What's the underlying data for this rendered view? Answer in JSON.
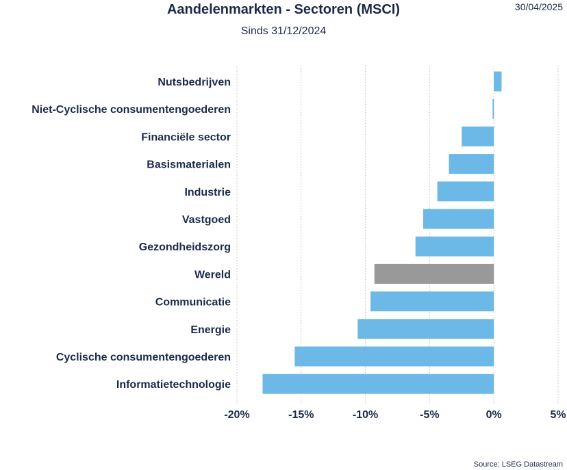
{
  "header": {
    "title": "Aandelenmarkten - Sectoren (MSCI)",
    "subtitle": "Sinds 31/12/2024",
    "date": "30/04/2025"
  },
  "footer": {
    "source": "Source: LSEG Datastream"
  },
  "colors": {
    "sector_bar": "#6cb8e6",
    "world_bar": "#999999",
    "grid": "#bfbfbf",
    "text": "#1b2a4a"
  },
  "chart_data": {
    "type": "bar",
    "orientation": "horizontal",
    "title": "Aandelenmarkten - Sectoren (MSCI)",
    "subtitle": "Sinds 31/12/2024",
    "categories": [
      "Nutsbedrijven",
      "Niet-Cyclische consumentengoederen",
      "Financiële sector",
      "Basismaterialen",
      "Industrie",
      "Vastgoed",
      "Gezondheidszorg",
      "Wereld",
      "Communicatie",
      "Energie",
      "Cyclische consumentengoederen",
      "Informatietechnologie"
    ],
    "values": [
      0.6,
      -0.1,
      -2.5,
      -3.5,
      -4.4,
      -5.5,
      -6.1,
      -9.3,
      -9.6,
      -10.6,
      -15.5,
      -18.0
    ],
    "highlight": "Wereld",
    "xlim": [
      -20,
      5
    ],
    "xticks": [
      -20,
      -15,
      -10,
      -5,
      0,
      5
    ],
    "xtick_labels": [
      "-20%",
      "-15%",
      "-10%",
      "-5%",
      "0%",
      "5%"
    ],
    "grid": true,
    "grid_style": "dotted vertical",
    "legend": "none"
  }
}
